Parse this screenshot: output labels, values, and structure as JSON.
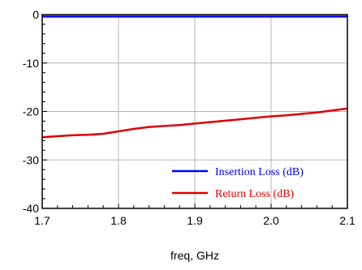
{
  "chart_data": {
    "type": "line",
    "xlabel": "freq, GHz",
    "ylabel": "",
    "xlim": [
      1.7,
      2.1
    ],
    "ylim": [
      -40,
      0
    ],
    "x_ticks": [
      1.7,
      1.8,
      1.9,
      2.0,
      2.1
    ],
    "x_tick_labels": [
      "1.7",
      "1.8",
      "1.9",
      "2.0",
      "2.1"
    ],
    "y_ticks": [
      0,
      -10,
      -20,
      -30,
      -40
    ],
    "y_tick_labels": [
      "0",
      "-10",
      "-20",
      "-30",
      "-40"
    ],
    "grid": true,
    "legend_position": "bottom-right",
    "series": [
      {
        "name": "Insertion Loss (dB)",
        "color": "#0000ff",
        "x": [
          1.7,
          1.75,
          1.8,
          1.85,
          1.9,
          1.95,
          2.0,
          2.05,
          2.1
        ],
        "y": [
          -0.4,
          -0.4,
          -0.4,
          -0.4,
          -0.4,
          -0.4,
          -0.4,
          -0.4,
          -0.4
        ]
      },
      {
        "name": "Return Loss (dB)",
        "color": "#dd0000",
        "x": [
          1.7,
          1.72,
          1.74,
          1.76,
          1.78,
          1.8,
          1.82,
          1.84,
          1.86,
          1.88,
          1.9,
          1.92,
          1.94,
          1.96,
          1.98,
          2.0,
          2.02,
          2.04,
          2.06,
          2.08,
          2.1
        ],
        "y": [
          -25.3,
          -25.1,
          -24.9,
          -24.8,
          -24.6,
          -24.1,
          -23.6,
          -23.2,
          -23.0,
          -22.8,
          -22.5,
          -22.2,
          -21.9,
          -21.6,
          -21.3,
          -21.0,
          -20.8,
          -20.5,
          -20.2,
          -19.8,
          -19.4
        ]
      }
    ]
  }
}
